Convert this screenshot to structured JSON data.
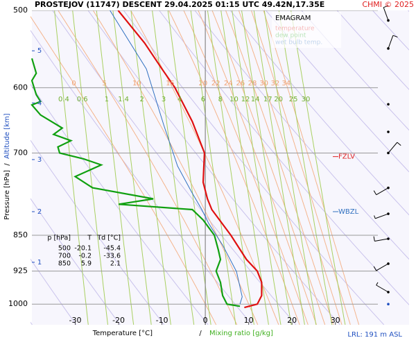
{
  "chart_data": {
    "type": "emagram",
    "title": "PROSTEJOV (11747)   DESCENT   29.04.2025 01:15 UTC  49.42N,17.35E",
    "credit": "CHMI © 2025",
    "legend_title": "EMAGRAM",
    "x_label": "Temperature [°C]",
    "x_label_sep": "/",
    "x_label2": "Mixing ratio [g/kg]",
    "y_label": "Pressure [hPa]",
    "y_label_sep": "/",
    "y_label2": "Altitude [km]",
    "footer": "LRL: 191 m ASL",
    "xlim": [
      -40,
      47
    ],
    "ylim": [
      1050,
      500
    ],
    "log_y": true,
    "xticks": [
      -30,
      -20,
      -10,
      0,
      10,
      20,
      30
    ],
    "yticks": [
      500,
      600,
      700,
      850,
      925,
      1000
    ],
    "highlight_isotherm": 0,
    "altitude_ticks": {
      "km": [
        1,
        2,
        3,
        4,
        5
      ],
      "pressure": [
        906,
        804,
        711,
        622,
        550
      ]
    },
    "mixing_ratio_labels": [
      0.4,
      0.6,
      1,
      1.4,
      2,
      3,
      4,
      6,
      8,
      10,
      12,
      14,
      17,
      20,
      25,
      30
    ],
    "moist_adiabat_labels": [
      0,
      5,
      10,
      15,
      20,
      22,
      24,
      26,
      28,
      30,
      32,
      34
    ],
    "levels": [
      {
        "label": "FZLV",
        "pressure": 706,
        "color": "#e02020"
      },
      {
        "label": "WBZL",
        "pressure": 804,
        "color": "#3070c0"
      }
    ],
    "series": [
      {
        "name": "temperature",
        "color": "#e01010",
        "pressure": [
          500,
          540,
          574,
          600,
          650,
          700,
          750,
          780,
          800,
          850,
          900,
          925,
          950,
          980,
          1000,
          1008
        ],
        "values": [
          -20.1,
          -14,
          -10,
          -7,
          -3,
          -0.2,
          -0.5,
          0.5,
          1.5,
          5.9,
          9.5,
          12,
          13,
          13,
          12,
          9
        ]
      },
      {
        "name": "dew point",
        "color": "#10a010",
        "pressure": [
          560,
          580,
          590,
          610,
          620,
          625,
          640,
          660,
          670,
          680,
          690,
          700,
          710,
          720,
          740,
          760,
          780,
          790,
          800,
          820,
          850,
          880,
          900,
          925,
          950,
          980,
          1000,
          1005
        ],
        "values": [
          -40,
          -39,
          -40,
          -39,
          -38,
          -40,
          -38,
          -33,
          -35,
          -31,
          -34,
          -33.6,
          -28,
          -24,
          -30,
          -26,
          -12,
          -20,
          -3,
          -0.5,
          2.1,
          3,
          3.5,
          2.5,
          3.5,
          4,
          5,
          8
        ]
      },
      {
        "name": "wet bulb temp.",
        "color": "#3070c0",
        "pressure": [
          500,
          574,
          655,
          722,
          767,
          800,
          827,
          870,
          926,
          983,
          1000
        ],
        "values": [
          -22,
          -13.6,
          -9.6,
          -6.4,
          -3.2,
          -0.8,
          0.8,
          4,
          7.2,
          8.5,
          8
        ]
      }
    ],
    "wind": {
      "pressure": [
        512,
        547,
        624,
        666,
        700,
        760,
        808,
        857,
        909,
        972,
        1000
      ],
      "direction": [
        340,
        20,
        0,
        0,
        40,
        240,
        250,
        260,
        240,
        300,
        0
      ],
      "speed": [
        15,
        15,
        0,
        0,
        15,
        15,
        10,
        15,
        15,
        10,
        0
      ]
    },
    "table": {
      "header": [
        "p [hPa]",
        "T",
        "Td [°C]"
      ],
      "rows": [
        [
          500,
          -20.1,
          -45.4
        ],
        [
          700,
          -0.2,
          -33.6
        ],
        [
          850,
          5.9,
          2.1
        ]
      ]
    }
  }
}
